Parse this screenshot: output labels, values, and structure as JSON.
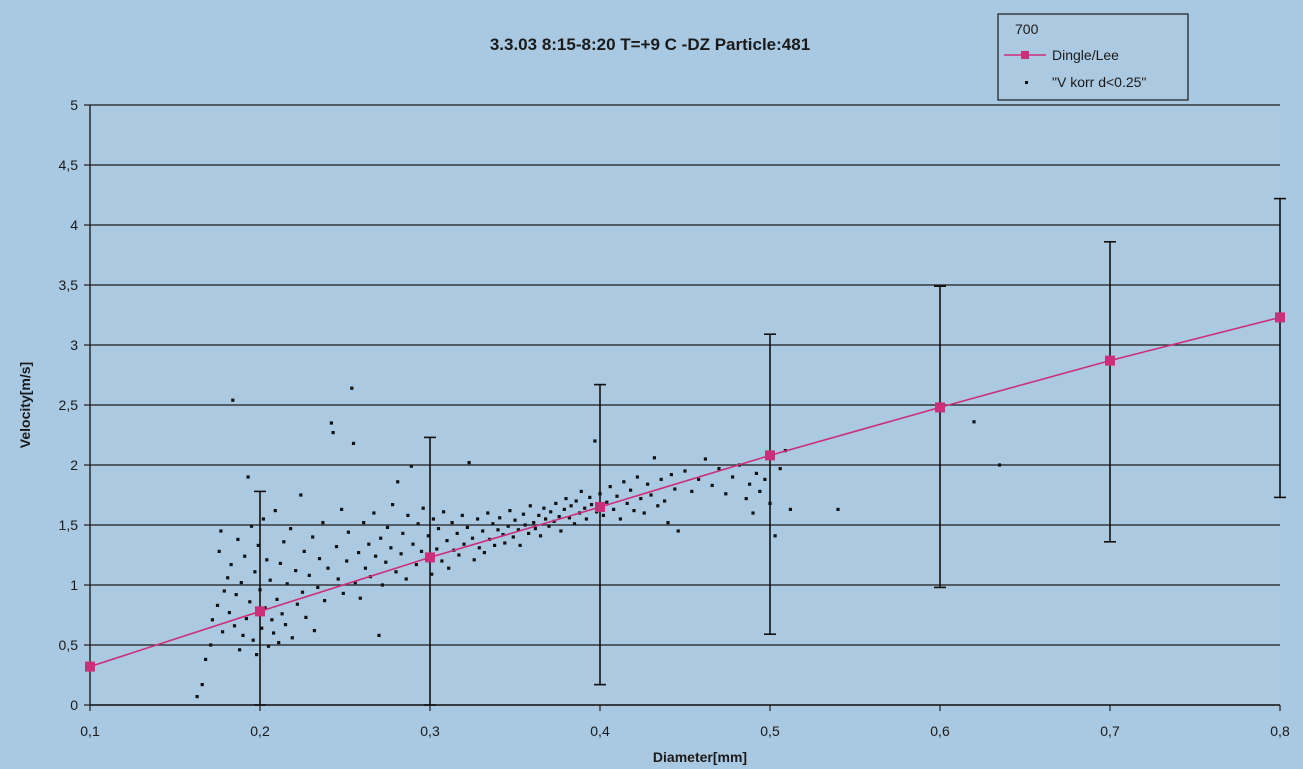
{
  "chart_data": {
    "type": "scatter",
    "title": "3.3.03 8:15-8:20 T=+9   C -DZ   Particle:481",
    "xlabel": "Diameter[mm]",
    "ylabel": "Velocity[m/s]",
    "xlim": [
      0.1,
      0.8
    ],
    "ylim": [
      0,
      5
    ],
    "x_ticks": [
      "0,1",
      "0,2",
      "0,3",
      "0,4",
      "0,5",
      "0,6",
      "0,7",
      "0,8"
    ],
    "y_ticks": [
      "0",
      "0,5",
      "1",
      "1,5",
      "2",
      "2,5",
      "3",
      "3,5",
      "4",
      "4,5",
      "5"
    ],
    "grid": "horizontal",
    "legend_position": "top-right",
    "legend_header": "700",
    "colors": {
      "background": "#a9c9e3",
      "plot_bg": "#acc9e2",
      "line": "#cc2f7a",
      "points": "#111111",
      "grid": "#1c1c1c"
    },
    "series": [
      {
        "name": "Dingle/Lee",
        "kind": "line-with-markers",
        "x": [
          0.1,
          0.2,
          0.3,
          0.4,
          0.5,
          0.6,
          0.7,
          0.8
        ],
        "y": [
          0.32,
          0.78,
          1.23,
          1.65,
          2.08,
          2.48,
          2.87,
          3.23
        ],
        "err_low": [
          null,
          0,
          0,
          0.17,
          0.59,
          0.98,
          1.36,
          1.73
        ],
        "err_high": [
          null,
          1.78,
          2.23,
          2.67,
          3.09,
          3.49,
          3.86,
          4.22
        ]
      },
      {
        "name": "\"V korr d<0.25\"",
        "kind": "points",
        "points": [
          [
            0.163,
            0.07
          ],
          [
            0.166,
            0.17
          ],
          [
            0.168,
            0.38
          ],
          [
            0.171,
            0.5
          ],
          [
            0.172,
            0.71
          ],
          [
            0.175,
            0.83
          ],
          [
            0.176,
            1.28
          ],
          [
            0.177,
            1.45
          ],
          [
            0.178,
            0.61
          ],
          [
            0.179,
            0.95
          ],
          [
            0.181,
            1.06
          ],
          [
            0.182,
            0.77
          ],
          [
            0.183,
            1.17
          ],
          [
            0.184,
            2.54
          ],
          [
            0.185,
            0.66
          ],
          [
            0.186,
            0.92
          ],
          [
            0.187,
            1.38
          ],
          [
            0.188,
            0.46
          ],
          [
            0.189,
            1.02
          ],
          [
            0.19,
            0.58
          ],
          [
            0.191,
            1.24
          ],
          [
            0.192,
            0.72
          ],
          [
            0.193,
            1.9
          ],
          [
            0.194,
            0.86
          ],
          [
            0.195,
            1.49
          ],
          [
            0.196,
            0.54
          ],
          [
            0.197,
            1.11
          ],
          [
            0.198,
            0.42
          ],
          [
            0.199,
            1.33
          ],
          [
            0.2,
            0.96
          ],
          [
            0.201,
            0.64
          ],
          [
            0.202,
            1.55
          ],
          [
            0.203,
            0.81
          ],
          [
            0.204,
            1.21
          ],
          [
            0.205,
            0.49
          ],
          [
            0.206,
            1.04
          ],
          [
            0.207,
            0.71
          ],
          [
            0.208,
            0.6
          ],
          [
            0.209,
            1.62
          ],
          [
            0.21,
            0.88
          ],
          [
            0.211,
            0.52
          ],
          [
            0.212,
            1.18
          ],
          [
            0.213,
            0.76
          ],
          [
            0.214,
            1.36
          ],
          [
            0.215,
            0.67
          ],
          [
            0.216,
            1.01
          ],
          [
            0.218,
            1.47
          ],
          [
            0.219,
            0.56
          ],
          [
            0.221,
            1.12
          ],
          [
            0.222,
            0.84
          ],
          [
            0.224,
            1.75
          ],
          [
            0.225,
            0.94
          ],
          [
            0.226,
            1.28
          ],
          [
            0.227,
            0.73
          ],
          [
            0.229,
            1.08
          ],
          [
            0.231,
            1.4
          ],
          [
            0.232,
            0.62
          ],
          [
            0.234,
            0.98
          ],
          [
            0.235,
            1.22
          ],
          [
            0.237,
            1.52
          ],
          [
            0.238,
            0.87
          ],
          [
            0.24,
            1.14
          ],
          [
            0.242,
            2.35
          ],
          [
            0.243,
            2.27
          ],
          [
            0.245,
            1.32
          ],
          [
            0.246,
            1.05
          ],
          [
            0.248,
            1.63
          ],
          [
            0.249,
            0.93
          ],
          [
            0.251,
            1.2
          ],
          [
            0.252,
            1.44
          ],
          [
            0.254,
            2.64
          ],
          [
            0.255,
            2.18
          ],
          [
            0.256,
            1.02
          ],
          [
            0.258,
            1.27
          ],
          [
            0.259,
            0.89
          ],
          [
            0.261,
            1.52
          ],
          [
            0.262,
            1.14
          ],
          [
            0.264,
            1.34
          ],
          [
            0.265,
            1.07
          ],
          [
            0.267,
            1.6
          ],
          [
            0.268,
            1.24
          ],
          [
            0.27,
            0.58
          ],
          [
            0.271,
            1.39
          ],
          [
            0.272,
            1.0
          ],
          [
            0.274,
            1.19
          ],
          [
            0.275,
            1.48
          ],
          [
            0.277,
            1.31
          ],
          [
            0.278,
            1.67
          ],
          [
            0.28,
            1.11
          ],
          [
            0.281,
            1.86
          ],
          [
            0.283,
            1.26
          ],
          [
            0.284,
            1.43
          ],
          [
            0.286,
            1.05
          ],
          [
            0.287,
            1.58
          ],
          [
            0.289,
            1.99
          ],
          [
            0.29,
            1.34
          ],
          [
            0.292,
            1.17
          ],
          [
            0.293,
            1.51
          ],
          [
            0.295,
            1.28
          ],
          [
            0.296,
            1.64
          ],
          [
            0.298,
            1.22
          ],
          [
            0.299,
            1.41
          ],
          [
            0.301,
            1.09
          ],
          [
            0.302,
            1.55
          ],
          [
            0.304,
            1.3
          ],
          [
            0.305,
            1.47
          ],
          [
            0.307,
            1.2
          ],
          [
            0.308,
            1.61
          ],
          [
            0.31,
            1.37
          ],
          [
            0.311,
            1.14
          ],
          [
            0.313,
            1.52
          ],
          [
            0.314,
            1.29
          ],
          [
            0.316,
            1.43
          ],
          [
            0.317,
            1.25
          ],
          [
            0.319,
            1.58
          ],
          [
            0.32,
            1.34
          ],
          [
            0.322,
            1.48
          ],
          [
            0.323,
            2.02
          ],
          [
            0.325,
            1.39
          ],
          [
            0.326,
            1.21
          ],
          [
            0.328,
            1.55
          ],
          [
            0.329,
            1.31
          ],
          [
            0.331,
            1.45
          ],
          [
            0.332,
            1.27
          ],
          [
            0.334,
            1.6
          ],
          [
            0.335,
            1.38
          ],
          [
            0.337,
            1.51
          ],
          [
            0.338,
            1.33
          ],
          [
            0.34,
            1.46
          ],
          [
            0.341,
            1.56
          ],
          [
            0.343,
            1.42
          ],
          [
            0.344,
            1.35
          ],
          [
            0.346,
            1.49
          ],
          [
            0.347,
            1.62
          ],
          [
            0.349,
            1.4
          ],
          [
            0.35,
            1.54
          ],
          [
            0.352,
            1.46
          ],
          [
            0.353,
            1.33
          ],
          [
            0.355,
            1.59
          ],
          [
            0.356,
            1.5
          ],
          [
            0.358,
            1.43
          ],
          [
            0.359,
            1.66
          ],
          [
            0.361,
            1.52
          ],
          [
            0.362,
            1.47
          ],
          [
            0.364,
            1.58
          ],
          [
            0.365,
            1.41
          ],
          [
            0.367,
            1.64
          ],
          [
            0.368,
            1.55
          ],
          [
            0.37,
            1.49
          ],
          [
            0.371,
            1.61
          ],
          [
            0.373,
            1.53
          ],
          [
            0.374,
            1.68
          ],
          [
            0.376,
            1.57
          ],
          [
            0.377,
            1.45
          ],
          [
            0.379,
            1.63
          ],
          [
            0.38,
            1.72
          ],
          [
            0.382,
            1.56
          ],
          [
            0.383,
            1.66
          ],
          [
            0.385,
            1.51
          ],
          [
            0.386,
            1.7
          ],
          [
            0.388,
            1.6
          ],
          [
            0.389,
            1.78
          ],
          [
            0.391,
            1.64
          ],
          [
            0.392,
            1.55
          ],
          [
            0.394,
            1.73
          ],
          [
            0.395,
            1.67
          ],
          [
            0.397,
            2.2
          ],
          [
            0.398,
            1.61
          ],
          [
            0.4,
            1.76
          ],
          [
            0.402,
            1.58
          ],
          [
            0.404,
            1.69
          ],
          [
            0.406,
            1.82
          ],
          [
            0.408,
            1.63
          ],
          [
            0.41,
            1.74
          ],
          [
            0.412,
            1.55
          ],
          [
            0.414,
            1.86
          ],
          [
            0.416,
            1.68
          ],
          [
            0.418,
            1.79
          ],
          [
            0.42,
            1.62
          ],
          [
            0.422,
            1.9
          ],
          [
            0.424,
            1.72
          ],
          [
            0.426,
            1.6
          ],
          [
            0.428,
            1.84
          ],
          [
            0.43,
            1.75
          ],
          [
            0.432,
            2.06
          ],
          [
            0.434,
            1.66
          ],
          [
            0.436,
            1.88
          ],
          [
            0.438,
            1.7
          ],
          [
            0.44,
            1.52
          ],
          [
            0.442,
            1.92
          ],
          [
            0.444,
            1.8
          ],
          [
            0.446,
            1.45
          ],
          [
            0.45,
            1.95
          ],
          [
            0.454,
            1.78
          ],
          [
            0.458,
            1.88
          ],
          [
            0.462,
            2.05
          ],
          [
            0.466,
            1.83
          ],
          [
            0.47,
            1.97
          ],
          [
            0.474,
            1.76
          ],
          [
            0.478,
            1.9
          ],
          [
            0.482,
            2.0
          ],
          [
            0.486,
            1.72
          ],
          [
            0.488,
            1.84
          ],
          [
            0.49,
            1.6
          ],
          [
            0.492,
            1.93
          ],
          [
            0.494,
            1.78
          ],
          [
            0.497,
            1.88
          ],
          [
            0.5,
            1.68
          ],
          [
            0.503,
            1.41
          ],
          [
            0.506,
            1.97
          ],
          [
            0.509,
            2.12
          ],
          [
            0.512,
            1.63
          ],
          [
            0.54,
            1.63
          ],
          [
            0.62,
            2.36
          ],
          [
            0.635,
            2.0
          ]
        ]
      }
    ]
  }
}
